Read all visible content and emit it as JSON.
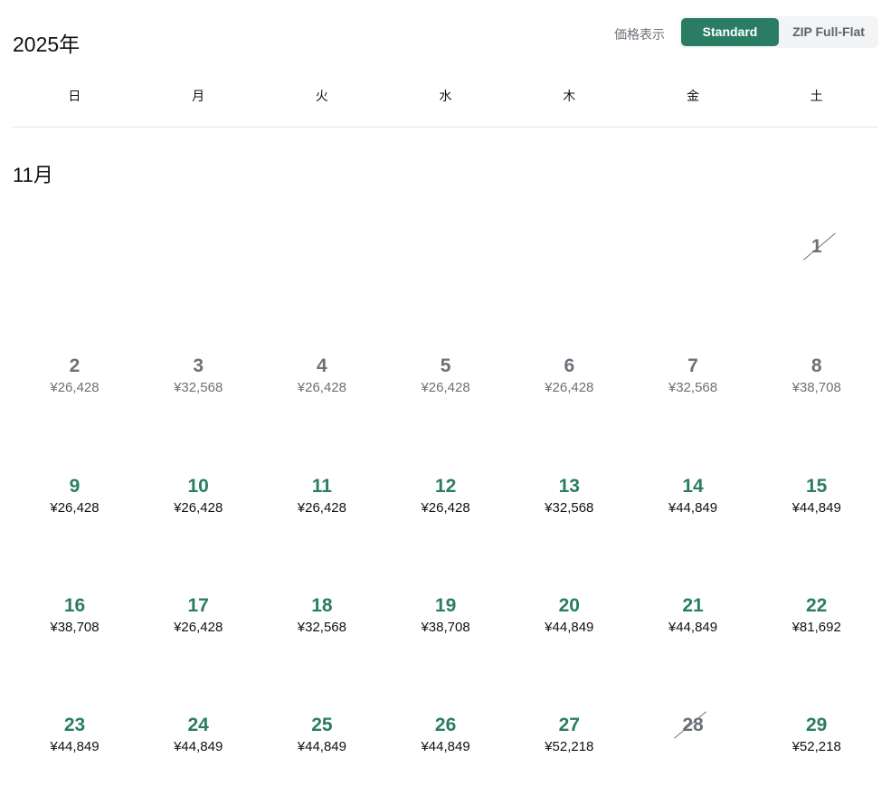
{
  "header": {
    "year": "2025年",
    "price_display_label": "価格表示",
    "toggle": {
      "options": [
        "Standard",
        "ZIP Full-Flat"
      ],
      "selected": "Standard"
    }
  },
  "weekdays": [
    "日",
    "月",
    "火",
    "水",
    "木",
    "金",
    "土"
  ],
  "month": "11月",
  "colors": {
    "accent": "#2a7d63",
    "muted": "#6b7178"
  },
  "weeks": [
    [
      null,
      null,
      null,
      null,
      null,
      null,
      {
        "day": "1",
        "price": "",
        "status": "unavailable"
      }
    ],
    [
      {
        "day": "2",
        "price": "¥26,428",
        "status": "past"
      },
      {
        "day": "3",
        "price": "¥32,568",
        "status": "past"
      },
      {
        "day": "4",
        "price": "¥26,428",
        "status": "past"
      },
      {
        "day": "5",
        "price": "¥26,428",
        "status": "past"
      },
      {
        "day": "6",
        "price": "¥26,428",
        "status": "past"
      },
      {
        "day": "7",
        "price": "¥32,568",
        "status": "past"
      },
      {
        "day": "8",
        "price": "¥38,708",
        "status": "past"
      }
    ],
    [
      {
        "day": "9",
        "price": "¥26,428",
        "status": "available"
      },
      {
        "day": "10",
        "price": "¥26,428",
        "status": "available"
      },
      {
        "day": "11",
        "price": "¥26,428",
        "status": "available"
      },
      {
        "day": "12",
        "price": "¥26,428",
        "status": "available"
      },
      {
        "day": "13",
        "price": "¥32,568",
        "status": "available"
      },
      {
        "day": "14",
        "price": "¥44,849",
        "status": "available"
      },
      {
        "day": "15",
        "price": "¥44,849",
        "status": "available"
      }
    ],
    [
      {
        "day": "16",
        "price": "¥38,708",
        "status": "available"
      },
      {
        "day": "17",
        "price": "¥26,428",
        "status": "available"
      },
      {
        "day": "18",
        "price": "¥32,568",
        "status": "available"
      },
      {
        "day": "19",
        "price": "¥38,708",
        "status": "available"
      },
      {
        "day": "20",
        "price": "¥44,849",
        "status": "available"
      },
      {
        "day": "21",
        "price": "¥44,849",
        "status": "available"
      },
      {
        "day": "22",
        "price": "¥81,692",
        "status": "available"
      }
    ],
    [
      {
        "day": "23",
        "price": "¥44,849",
        "status": "available"
      },
      {
        "day": "24",
        "price": "¥44,849",
        "status": "available"
      },
      {
        "day": "25",
        "price": "¥44,849",
        "status": "available"
      },
      {
        "day": "26",
        "price": "¥44,849",
        "status": "available"
      },
      {
        "day": "27",
        "price": "¥52,218",
        "status": "available"
      },
      {
        "day": "28",
        "price": "",
        "status": "unavailable"
      },
      {
        "day": "29",
        "price": "¥52,218",
        "status": "available"
      }
    ]
  ]
}
